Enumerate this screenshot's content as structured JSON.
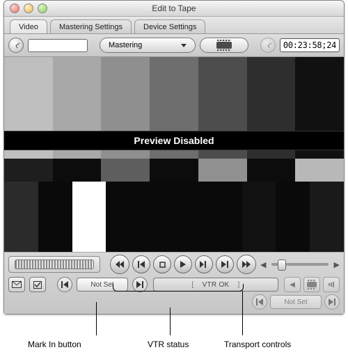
{
  "window": {
    "title": "Edit to Tape"
  },
  "tabs": [
    {
      "label": "Video",
      "active": true
    },
    {
      "label": "Mastering Settings",
      "active": false
    },
    {
      "label": "Device Settings",
      "active": false
    }
  ],
  "toolbar": {
    "mode_menu": {
      "selected": "Mastering"
    },
    "timecode_display": "00:23:58;24"
  },
  "preview": {
    "overlay_text": "Preview Disabled",
    "background_color": "#000000",
    "rows": [
      {
        "heights_pct": 22,
        "colors": [
          "#bfbfbf",
          "#a8a8a8",
          "#8f8f8f",
          "#6e6e6e",
          "#4d4d4d",
          "#2e2e2e",
          "#111111"
        ]
      },
      {
        "heights_pct": 30,
        "colors": [
          "#bfbfbf",
          "#a8a8a8",
          "#8f8f8f",
          "#6e6e6e",
          "#4d4d4d",
          "#2e2e2e",
          "#111111"
        ]
      },
      {
        "heights_pct": 12,
        "colors": [
          "#1e1e1e",
          "#0c0c0c",
          "#5e5e5e",
          "#0c0c0c",
          "#909090",
          "#0c0c0c",
          "#b8b8b8"
        ]
      },
      {
        "heights_pct": 36,
        "colors": [
          "#2b2b2b",
          "#0a0a0a",
          "#ffffff",
          "#0a0a0a",
          "#0a0a0a",
          "#0a0a0a",
          "#0a0a0a",
          "#121212",
          "#0a0a0a",
          "#1a1a1a"
        ]
      }
    ]
  },
  "controls": {
    "shuttle_slider_pct": 10,
    "mark_in_label": "Not Set",
    "mark_out_label": "Not Set",
    "vtr_status": "VTR OK"
  },
  "icons": {
    "play": "▶",
    "stop": "■",
    "pause": "❚❚",
    "rewind": "◀◀",
    "fast_forward": "▶▶",
    "step_back": "❚◀",
    "step_fwd": "▶❚",
    "mark_in": "▶❚",
    "mark_out": "❚◀",
    "envelope": "✉",
    "check": "☑",
    "go_start": "❘◀",
    "go_end": "▶❘",
    "film": "🎞",
    "skip_l": "◀",
    "skip_r": "▶",
    "speaker": "🔊"
  },
  "callouts": {
    "mark_in": "Mark In button",
    "vtr_status": "VTR status",
    "transport": "Transport controls"
  },
  "colors": {
    "panel_top": "#dedede",
    "panel_bot": "#c6c6c6",
    "button_top": "#fdfdfd",
    "button_bot": "#bfbfbf",
    "border": "#777777"
  }
}
